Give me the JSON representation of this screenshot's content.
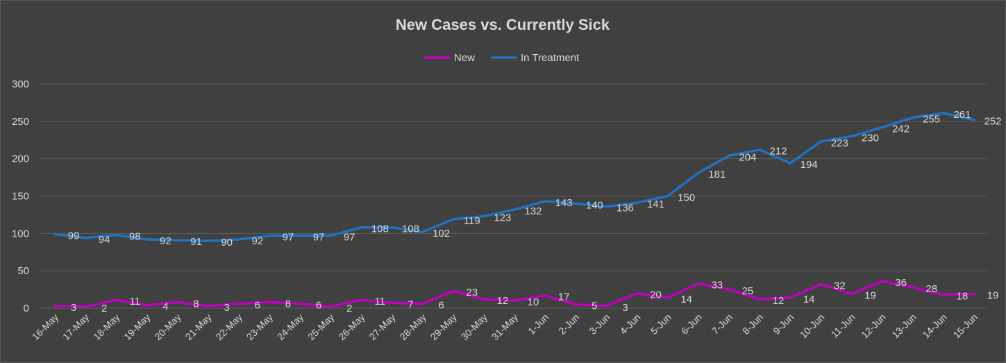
{
  "chart_data": {
    "type": "line",
    "title": "New Cases vs. Currently Sick",
    "categories": [
      "16-May",
      "17-May",
      "18-May",
      "19-May",
      "20-May",
      "21-May",
      "22-May",
      "23-May",
      "24-May",
      "25-May",
      "26-May",
      "27-May",
      "28-May",
      "29-May",
      "30-May",
      "31-May",
      "1-Jun",
      "2-Jun",
      "3-Jun",
      "4-Jun",
      "5-Jun",
      "6-Jun",
      "7-Jun",
      "8-Jun",
      "9-Jun",
      "10-Jun",
      "11-Jun",
      "12-Jun",
      "13-Jun",
      "14-Jun",
      "15-Jun"
    ],
    "series": [
      {
        "name": "New",
        "color": "#c000c0",
        "values": [
          3,
          2,
          11,
          4,
          8,
          3,
          6,
          8,
          6,
          2,
          11,
          7,
          6,
          23,
          12,
          10,
          17,
          5,
          3,
          20,
          14,
          33,
          25,
          12,
          14,
          32,
          19,
          36,
          28,
          18,
          19
        ]
      },
      {
        "name": "In Treatment",
        "color": "#1f72c4",
        "values": [
          99,
          94,
          98,
          92,
          91,
          90,
          92,
          97,
          97,
          97,
          108,
          108,
          102,
          119,
          123,
          132,
          143,
          140,
          136,
          141,
          150,
          181,
          204,
          212,
          194,
          223,
          230,
          242,
          255,
          261,
          252
        ]
      }
    ],
    "ylim": [
      0,
      300
    ],
    "yticks": [
      0,
      50,
      100,
      150,
      200,
      250,
      300
    ],
    "xlabel": "",
    "ylabel": "",
    "grid": true,
    "legend_position": "top-center",
    "data_labels": true
  }
}
